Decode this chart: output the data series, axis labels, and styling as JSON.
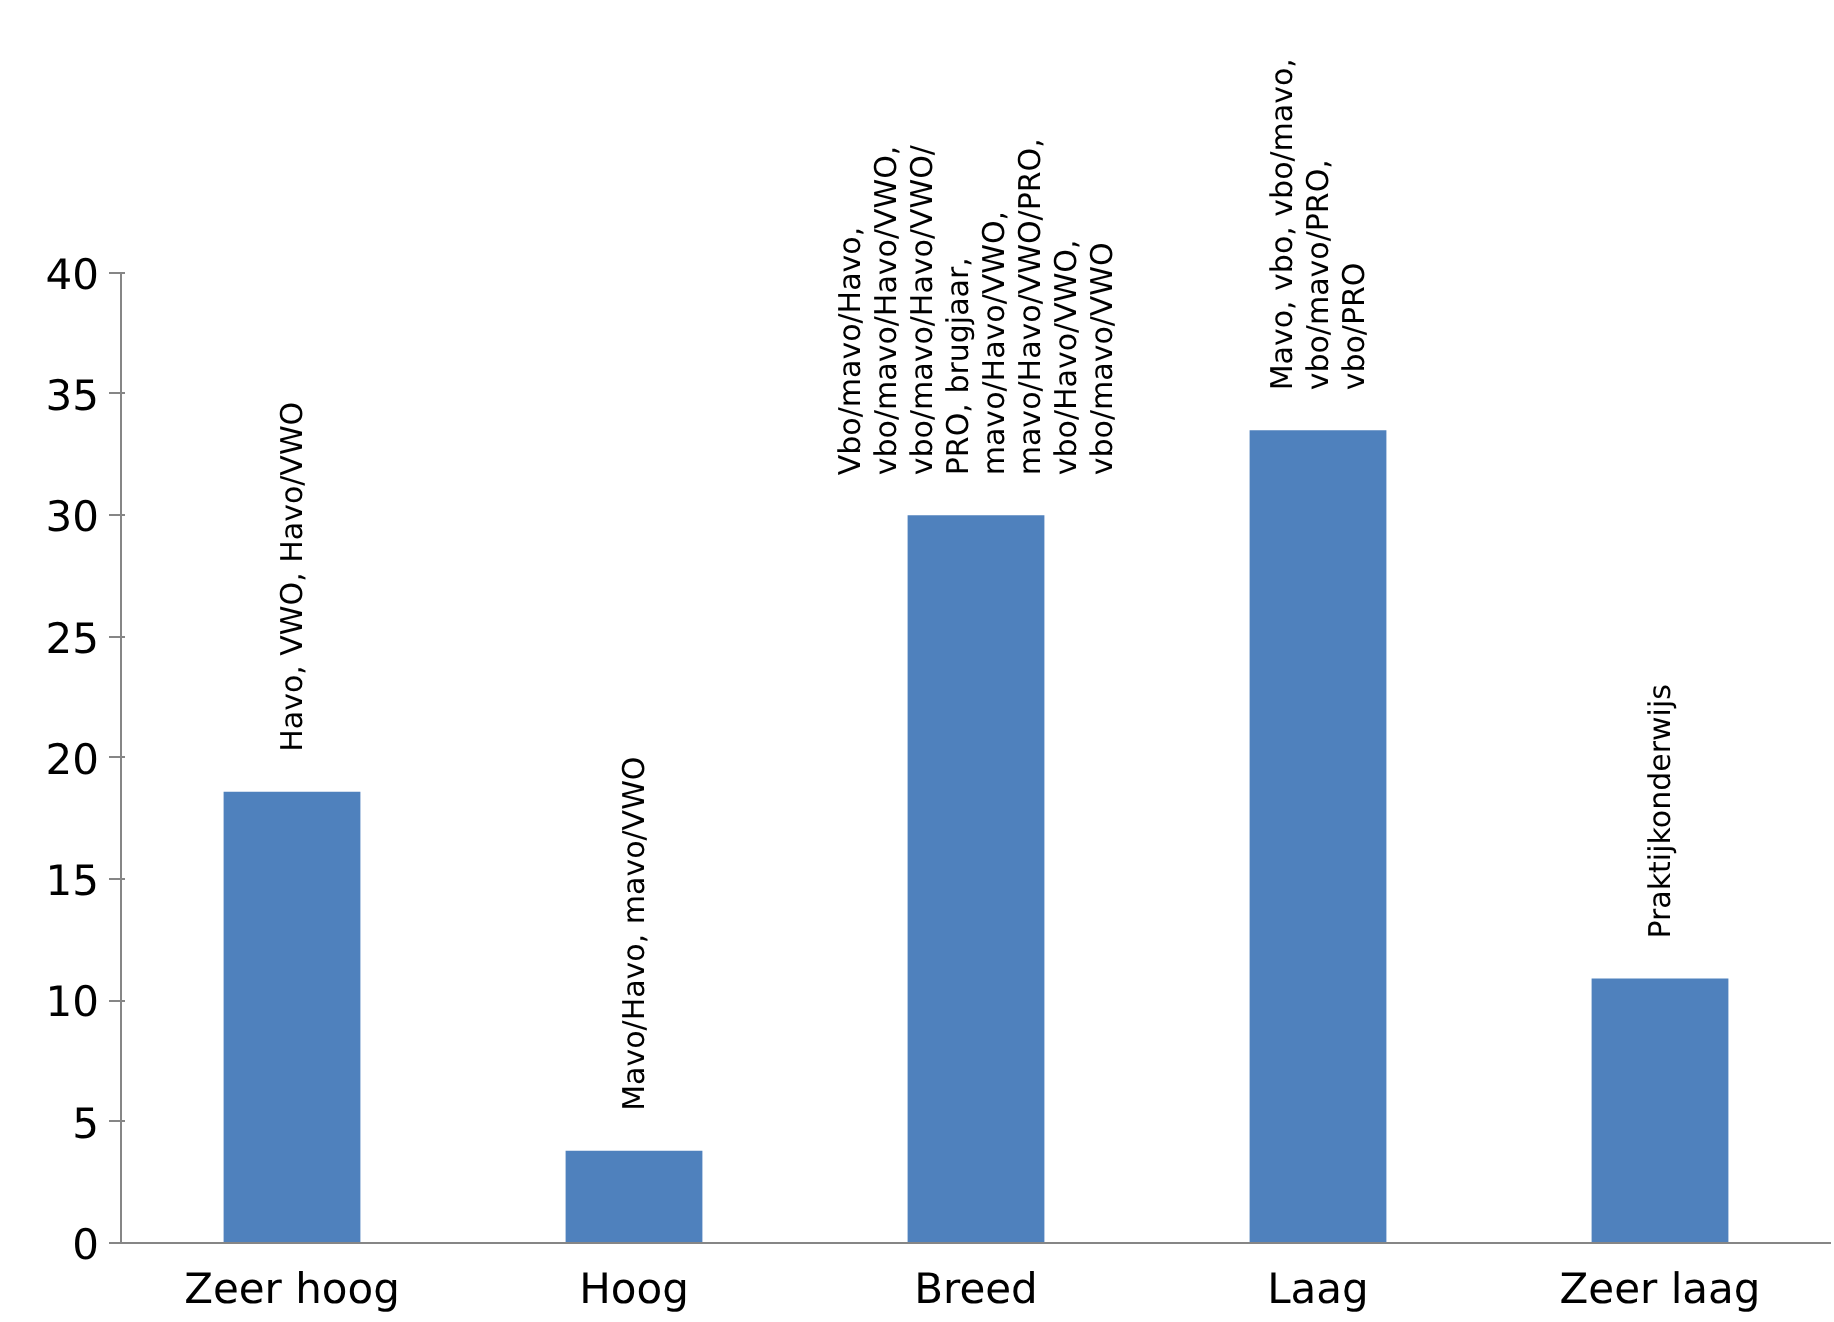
{
  "chart_data": {
    "type": "bar",
    "categories": [
      "Zeer hoog",
      "Hoog",
      "Breed",
      "Laag",
      "Zeer laag"
    ],
    "values": [
      18.6,
      3.8,
      30.0,
      33.5,
      10.9
    ],
    "color": "#4f81bd",
    "ylim": [
      0,
      40
    ],
    "yticks": [
      0,
      5,
      10,
      15,
      20,
      25,
      30,
      35,
      40
    ],
    "grid": false,
    "annotations": [
      {
        "text": "Havo, VWO, Havo/VWO",
        "x": "Zeer hoog",
        "y": 18.6
      },
      {
        "text": "Mavo/Havo, mavo/VWO",
        "x": "Hoog",
        "y": 3.8
      },
      {
        "text": "Vbo/mavo/Havo,\nvbo/mavo/Havo/VWO,\nvbo/mavo/Havo/VWO/\nPRO, brugjaar,\nmavo/Havo/VWO,\nmavo/Havo/VWO/PRO,\nvbo/Havo/VWO,\nvbo/mavo/VWO",
        "x": "Breed",
        "y": 30.0
      },
      {
        "text": "Mavo, vbo, vbo/mavo,\nvbo/mavo/PRO,\nvbo/PRO",
        "x": "Laag",
        "y": 33.5
      },
      {
        "text": "Praktijkonderwijs",
        "x": "Zeer laag",
        "y": 10.9
      }
    ]
  }
}
